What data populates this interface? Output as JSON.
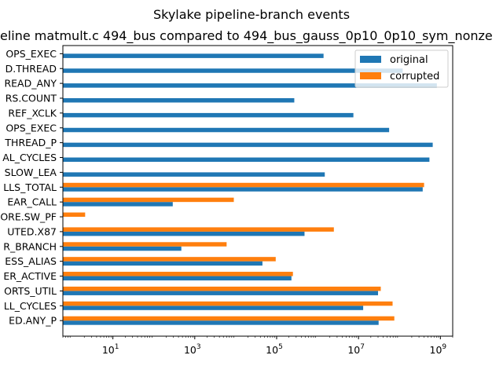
{
  "chart_data": {
    "type": "bar",
    "orientation": "horizontal",
    "title": "Skylake pipeline-branch events",
    "subtitle": "eline matmult.c 494_bus compared to 494_bus_gauss_0p10_0p10_sym_nonze",
    "xlabel": "",
    "ylabel": "",
    "xscale": "log",
    "xlim": [
      0.6,
      2000000000
    ],
    "x_ticks": [
      {
        "value": 10,
        "base": "10",
        "exp": "1"
      },
      {
        "value": 1000,
        "base": "10",
        "exp": "3"
      },
      {
        "value": 100000,
        "base": "10",
        "exp": "5"
      },
      {
        "value": 10000000,
        "base": "10",
        "exp": "7"
      },
      {
        "value": 1000000000,
        "base": "10",
        "exp": "9"
      }
    ],
    "grid": false,
    "legend": "top-right",
    "categories": [
      "OPS_EXEC",
      "D.THREAD",
      "READ_ANY",
      "RS.COUNT",
      "REF_XCLK",
      "OPS_EXEC",
      "THREAD_P",
      "AL_CYCLES",
      "SLOW_LEA",
      "LLS_TOTAL",
      "EAR_CALL",
      "ORE.SW_PF",
      "UTED.X87",
      "R_BRANCH",
      "ESS_ALIAS",
      "ER_ACTIVE",
      "ORTS_UTIL",
      "LL_CYCLES",
      "ED.ANY_P"
    ],
    "series": [
      {
        "name": "original",
        "color": "#1f77b4",
        "values": [
          1400000,
          120000000,
          820000000,
          270000,
          7500000,
          56000000,
          650000000,
          540000000,
          1500000,
          370000000,
          290,
          null,
          480000,
          470,
          45000,
          230000,
          30000000,
          13000000,
          31000000
        ]
      },
      {
        "name": "corrupted",
        "color": "#ff7f0e",
        "values": [
          null,
          null,
          null,
          null,
          null,
          null,
          null,
          null,
          null,
          400000000,
          9000,
          2.1,
          2500000,
          6000,
          95000,
          250000,
          35000000,
          68000000,
          75000000
        ]
      }
    ]
  }
}
